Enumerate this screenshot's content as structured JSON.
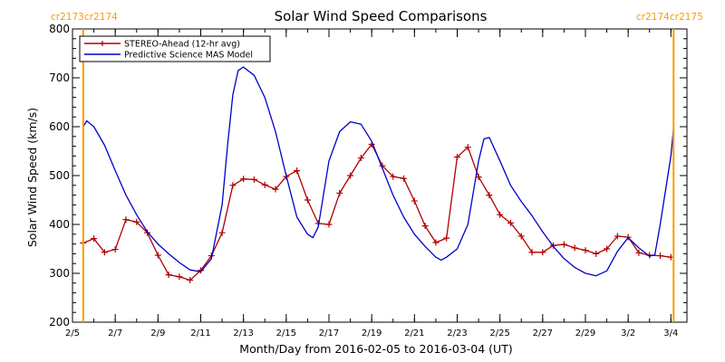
{
  "chart_data": {
    "type": "line",
    "title": "Solar Wind Speed Comparisons",
    "xlabel": "Month/Day from 2016-02-05 to 2016-03-04 (UT)",
    "ylabel": "Solar Wind Speed (km/s)",
    "xlim": [
      "2016-02-05",
      "2016-03-04 18:00"
    ],
    "ylim": [
      200,
      800
    ],
    "y_ticks": [
      200,
      300,
      400,
      500,
      600,
      700,
      800
    ],
    "x_ticks": [
      {
        "date": "2016-02-05",
        "label": "2/5"
      },
      {
        "date": "2016-02-07",
        "label": "2/7"
      },
      {
        "date": "2016-02-09",
        "label": "2/9"
      },
      {
        "date": "2016-02-11",
        "label": "2/11"
      },
      {
        "date": "2016-02-13",
        "label": "2/13"
      },
      {
        "date": "2016-02-15",
        "label": "2/15"
      },
      {
        "date": "2016-02-17",
        "label": "2/17"
      },
      {
        "date": "2016-02-19",
        "label": "2/19"
      },
      {
        "date": "2016-02-21",
        "label": "2/21"
      },
      {
        "date": "2016-02-23",
        "label": "2/23"
      },
      {
        "date": "2016-02-25",
        "label": "2/25"
      },
      {
        "date": "2016-02-27",
        "label": "2/27"
      },
      {
        "date": "2016-02-29",
        "label": "2/29"
      },
      {
        "date": "2016-03-02",
        "label": "3/2"
      },
      {
        "date": "2016-03-04",
        "label": "3/4"
      }
    ],
    "legend_position": "top-left",
    "colors": {
      "stereo": "#b00000",
      "model": "#0000cc",
      "carrington": "#ff9900"
    },
    "series": [
      {
        "name": "STEREO-Ahead (12-hr avg)",
        "marker": "plus",
        "color": "#b00000",
        "points": [
          [
            "2016-02-05 12:00",
            362
          ],
          [
            "2016-02-06 00:00",
            371
          ],
          [
            "2016-02-06 12:00",
            343
          ],
          [
            "2016-02-07 00:00",
            349
          ],
          [
            "2016-02-07 12:00",
            410
          ],
          [
            "2016-02-08 00:00",
            405
          ],
          [
            "2016-02-08 12:00",
            383
          ],
          [
            "2016-02-09 00:00",
            337
          ],
          [
            "2016-02-09 12:00",
            297
          ],
          [
            "2016-02-10 00:00",
            293
          ],
          [
            "2016-02-10 12:00",
            286
          ],
          [
            "2016-02-11 00:00",
            306
          ],
          [
            "2016-02-11 12:00",
            336
          ],
          [
            "2016-02-12 00:00",
            383
          ],
          [
            "2016-02-12 12:00",
            480
          ],
          [
            "2016-02-13 00:00",
            493
          ],
          [
            "2016-02-13 12:00",
            492
          ],
          [
            "2016-02-14 00:00",
            481
          ],
          [
            "2016-02-14 12:00",
            472
          ],
          [
            "2016-02-15 00:00",
            498
          ],
          [
            "2016-02-15 12:00",
            510
          ],
          [
            "2016-02-16 00:00",
            450
          ],
          [
            "2016-02-16 12:00",
            402
          ],
          [
            "2016-02-17 00:00",
            400
          ],
          [
            "2016-02-17 12:00",
            464
          ],
          [
            "2016-02-18 00:00",
            500
          ],
          [
            "2016-02-18 12:00",
            536
          ],
          [
            "2016-02-19 00:00",
            564
          ],
          [
            "2016-02-19 12:00",
            520
          ],
          [
            "2016-02-20 00:00",
            498
          ],
          [
            "2016-02-20 12:00",
            494
          ],
          [
            "2016-02-21 00:00",
            448
          ],
          [
            "2016-02-21 12:00",
            397
          ],
          [
            "2016-02-22 00:00",
            363
          ],
          [
            "2016-02-22 12:00",
            372
          ],
          [
            "2016-02-23 00:00",
            538
          ],
          [
            "2016-02-23 12:00",
            558
          ],
          [
            "2016-02-24 00:00",
            497
          ],
          [
            "2016-02-24 12:00",
            460
          ],
          [
            "2016-02-25 00:00",
            420
          ],
          [
            "2016-02-25 12:00",
            403
          ],
          [
            "2016-02-26 00:00",
            376
          ],
          [
            "2016-02-26 12:00",
            343
          ],
          [
            "2016-02-27 00:00",
            343
          ],
          [
            "2016-02-27 12:00",
            357
          ],
          [
            "2016-02-28 00:00",
            359
          ],
          [
            "2016-02-28 12:00",
            352
          ],
          [
            "2016-02-29 00:00",
            347
          ],
          [
            "2016-02-29 12:00",
            340
          ],
          [
            "2016-03-01 00:00",
            350
          ],
          [
            "2016-03-01 12:00",
            376
          ],
          [
            "2016-03-02 00:00",
            374
          ],
          [
            "2016-03-02 12:00",
            342
          ],
          [
            "2016-03-03 00:00",
            337
          ],
          [
            "2016-03-03 12:00",
            336
          ],
          [
            "2016-03-04 00:00",
            333
          ]
        ]
      },
      {
        "name": "Predictive Science MAS Model",
        "marker": "none",
        "color": "#0000cc",
        "points": [
          [
            "2016-02-05 12:00",
            600
          ],
          [
            "2016-02-05 16:00",
            612
          ],
          [
            "2016-02-06 00:00",
            600
          ],
          [
            "2016-02-06 12:00",
            562
          ],
          [
            "2016-02-07 00:00",
            510
          ],
          [
            "2016-02-07 12:00",
            460
          ],
          [
            "2016-02-08 00:00",
            420
          ],
          [
            "2016-02-08 12:00",
            385
          ],
          [
            "2016-02-09 00:00",
            360
          ],
          [
            "2016-02-09 12:00",
            340
          ],
          [
            "2016-02-10 00:00",
            322
          ],
          [
            "2016-02-10 12:00",
            307
          ],
          [
            "2016-02-11 00:00",
            303
          ],
          [
            "2016-02-11 12:00",
            330
          ],
          [
            "2016-02-12 00:00",
            440
          ],
          [
            "2016-02-12 06:00",
            560
          ],
          [
            "2016-02-12 12:00",
            665
          ],
          [
            "2016-02-12 18:00",
            715
          ],
          [
            "2016-02-13 00:00",
            722
          ],
          [
            "2016-02-13 12:00",
            705
          ],
          [
            "2016-02-14 00:00",
            660
          ],
          [
            "2016-02-14 12:00",
            590
          ],
          [
            "2016-02-15 00:00",
            500
          ],
          [
            "2016-02-15 12:00",
            415
          ],
          [
            "2016-02-16 00:00",
            380
          ],
          [
            "2016-02-16 06:00",
            373
          ],
          [
            "2016-02-16 12:00",
            395
          ],
          [
            "2016-02-17 00:00",
            530
          ],
          [
            "2016-02-17 12:00",
            590
          ],
          [
            "2016-02-18 00:00",
            610
          ],
          [
            "2016-02-18 12:00",
            605
          ],
          [
            "2016-02-19 00:00",
            570
          ],
          [
            "2016-02-19 12:00",
            515
          ],
          [
            "2016-02-20 00:00",
            460
          ],
          [
            "2016-02-20 12:00",
            415
          ],
          [
            "2016-02-21 00:00",
            380
          ],
          [
            "2016-02-21 12:00",
            355
          ],
          [
            "2016-02-22 00:00",
            333
          ],
          [
            "2016-02-22 06:00",
            327
          ],
          [
            "2016-02-22 12:00",
            333
          ],
          [
            "2016-02-23 00:00",
            350
          ],
          [
            "2016-02-23 12:00",
            400
          ],
          [
            "2016-02-24 00:00",
            530
          ],
          [
            "2016-02-24 06:00",
            575
          ],
          [
            "2016-02-24 12:00",
            578
          ],
          [
            "2016-02-25 00:00",
            530
          ],
          [
            "2016-02-25 12:00",
            480
          ],
          [
            "2016-02-26 00:00",
            447
          ],
          [
            "2016-02-26 12:00",
            418
          ],
          [
            "2016-02-27 00:00",
            385
          ],
          [
            "2016-02-27 12:00",
            355
          ],
          [
            "2016-02-28 00:00",
            330
          ],
          [
            "2016-02-28 12:00",
            312
          ],
          [
            "2016-02-29 00:00",
            300
          ],
          [
            "2016-02-29 12:00",
            295
          ],
          [
            "2016-03-01 00:00",
            305
          ],
          [
            "2016-03-01 12:00",
            345
          ],
          [
            "2016-03-02 00:00",
            373
          ],
          [
            "2016-03-02 12:00",
            352
          ],
          [
            "2016-03-03 00:00",
            335
          ],
          [
            "2016-03-03 06:00",
            338
          ],
          [
            "2016-03-03 12:00",
            400
          ],
          [
            "2016-03-04 00:00",
            540
          ],
          [
            "2016-03-04 03:00",
            598
          ]
        ]
      }
    ],
    "carrington_markers": [
      {
        "date": "2016-02-05 12:00",
        "labels": [
          "cr2173",
          "cr2174"
        ],
        "side": "left"
      },
      {
        "date": "2016-03-04 03:00",
        "labels": [
          "cr2174",
          "cr2175"
        ],
        "side": "right"
      }
    ]
  }
}
